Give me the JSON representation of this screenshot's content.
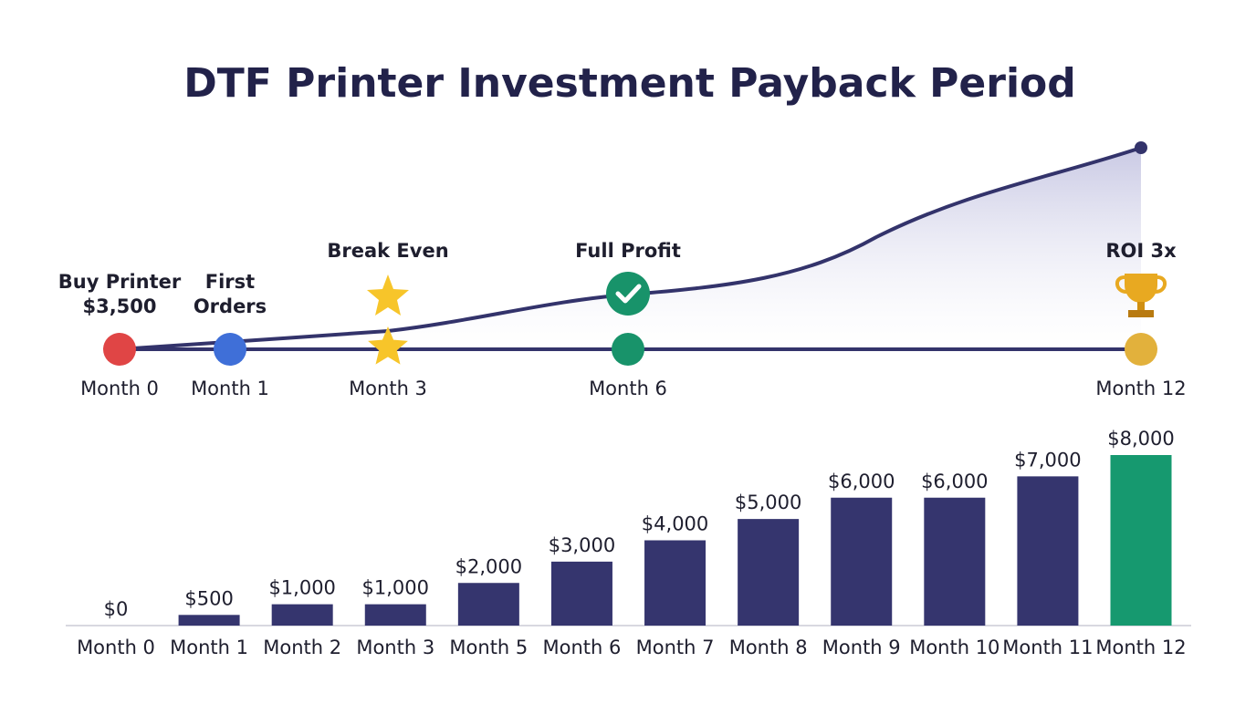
{
  "title": "DTF Printer Investment Payback Period",
  "timeline": {
    "milestones": [
      {
        "label": [
          "Buy Printer",
          "$3,500"
        ],
        "month": "Month 0",
        "color": "#e04545"
      },
      {
        "label": [
          "First",
          "Orders"
        ],
        "month": "Month 1",
        "color": "#3f6fd8"
      },
      {
        "label": [
          "Break Even"
        ],
        "month": "Month 3",
        "color": "#f7c52a"
      },
      {
        "label": [
          "Full Profit"
        ],
        "month": "Month 6",
        "color": "#18936a"
      },
      {
        "label": [
          "ROI 3x"
        ],
        "month": "Month 12",
        "color": "#e2b13c"
      }
    ]
  },
  "chart_data": {
    "type": "bar",
    "categories": [
      "Month 0",
      "Month 1",
      "Month 2",
      "Month 3",
      "Month 5",
      "Month 6",
      "Month 7",
      "Month 8",
      "Month 9",
      "Month 10",
      "Month 11",
      "Month 12"
    ],
    "values": [
      0,
      500,
      1000,
      1000,
      2000,
      3000,
      4000,
      5000,
      6000,
      6000,
      7000,
      8000
    ],
    "value_labels": [
      "$0",
      "$500",
      "$1,000",
      "$1,000",
      "$2,000",
      "$3,000",
      "$4,000",
      "$5,000",
      "$6,000",
      "$6,000",
      "$7,000",
      "$8,000"
    ],
    "colors": [
      "#35356e",
      "#35356e",
      "#35356e",
      "#35356e",
      "#35356e",
      "#35356e",
      "#35356e",
      "#35356e",
      "#35356e",
      "#35356e",
      "#35356e",
      "#16996f"
    ]
  }
}
